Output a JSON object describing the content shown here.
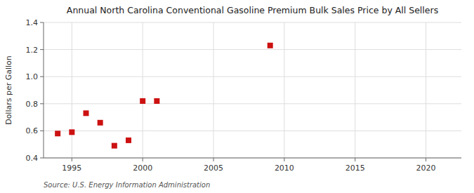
{
  "chart_data": {
    "type": "scatter",
    "title": "Annual North Carolina Conventional Gasoline Premium Bulk Sales Price by All Sellers",
    "y_label": "Dollars per Gallon",
    "annotations": [
      "Source: U.S. Energy Information Administration"
    ],
    "x": [
      1994,
      1995,
      1996,
      1997,
      1998,
      1999,
      2000,
      2001,
      2009
    ],
    "values": [
      0.58,
      0.59,
      0.73,
      0.66,
      0.49,
      0.53,
      0.82,
      0.82,
      1.23
    ],
    "color": "#cc1111",
    "marker": "square",
    "xlim": [
      1993.0,
      2022.5
    ],
    "ylim": [
      0.4,
      1.4
    ],
    "xticks": [
      1995,
      2000,
      2005,
      2010,
      2015,
      2020
    ],
    "yticks": [
      0.4,
      0.6,
      0.8,
      {
        "value": 1.0,
        "label": "1.0"
      },
      1.2,
      1.4
    ],
    "grid": true
  }
}
